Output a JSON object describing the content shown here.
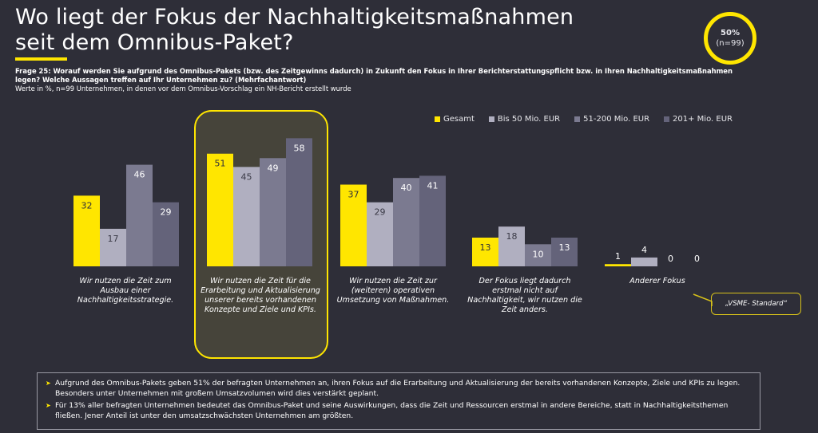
{
  "header": {
    "title_line1": "Wo liegt der Fokus der Nachhaltigkeitsmaßnahmen",
    "title_line2": "seit dem Omnibus-Paket?",
    "accent_color": "#ffe600"
  },
  "badge": {
    "percent": "50%",
    "sample": "(n=99)"
  },
  "question": {
    "text_bold": "Frage 25: Worauf werden Sie aufgrund des Omnibus-Pakets (bzw. des Zeitgewinns dadurch) in Zukunft den Fokus in Ihrer Berichterstattungspflicht bzw. in Ihren Nachhaltigkeitsmaßnahmen legen? Welche Aussagen treffen auf Ihr Unternehmen zu? (Mehrfachantwort)",
    "note": "Werte in %, n=99 Unternehmen, in denen vor dem Omnibus-Vorschlag ein NH-Bericht erstellt wurde"
  },
  "chart_data": {
    "type": "bar",
    "title": "Wo liegt der Fokus der Nachhaltigkeitsmaßnahmen seit dem Omnibus-Paket?",
    "xlabel": "",
    "ylabel": "Werte in %",
    "ylim": [
      0,
      60
    ],
    "grid": false,
    "legend_position": "top-right",
    "categories": [
      "Wir nutzen die Zeit zum Ausbau einer Nachhaltigkeitsstrategie.",
      "Wir nutzen die Zeit für die Erarbeitung und Aktualisierung unserer bereits vorhandenen Konzepte und Ziele und KPIs.",
      "Wir nutzen die Zeit zur (weiteren) operativen Umsetzung von Maßnahmen.",
      "Der Fokus liegt dadurch erstmal nicht auf Nachhaltigkeit, wir nutzen die Zeit anders.",
      "Anderer Fokus"
    ],
    "series": [
      {
        "name": "Gesamt",
        "color": "#ffe600",
        "label_color": "#2e2e38",
        "values": [
          32,
          51,
          37,
          13,
          1
        ]
      },
      {
        "name": "Bis 50 Mio. EUR",
        "color": "#b0afc0",
        "label_color": "#3a3a46",
        "values": [
          17,
          45,
          29,
          18,
          4
        ]
      },
      {
        "name": "51-200 Mio. EUR",
        "color": "#7b7a90",
        "label_color": "#ffffff",
        "values": [
          46,
          49,
          40,
          10,
          0
        ]
      },
      {
        "name": "201+ Mio. EUR",
        "color": "#64637a",
        "label_color": "#ffffff",
        "values": [
          29,
          58,
          41,
          13,
          0
        ]
      }
    ],
    "highlighted_category_index": 1,
    "annotation": "„VSME- Standard“"
  },
  "category_labels": [
    "Wir nutzen die Zeit zum Ausbau einer Nachhaltigkeitsstrategie.",
    "Wir nutzen die Zeit für die Erarbeitung und Aktualisierung unserer bereits vorhandenen Konzepte und Ziele und KPIs.",
    "Wir nutzen die Zeit zur (weiteren) operativen Umsetzung von Maßnahmen.",
    "Der Fokus liegt dadurch erstmal nicht auf Nachhaltigkeit, wir nutzen die Zeit anders.",
    "Anderer Fokus"
  ],
  "legend": [
    {
      "label": "Gesamt",
      "color": "#ffe600"
    },
    {
      "label": "Bis 50 Mio. EUR",
      "color": "#b0afc0"
    },
    {
      "label": "51-200 Mio. EUR",
      "color": "#7b7a90"
    },
    {
      "label": "201+ Mio. EUR",
      "color": "#64637a"
    }
  ],
  "callout": {
    "text": "„VSME- Standard“"
  },
  "summary": {
    "bullet_icon": "triangle-right-icon",
    "items": [
      "Aufgrund des Omnibus-Pakets geben 51% der befragten Unternehmen an, ihren Fokus auf die Erarbeitung und Aktualisierung der bereits vorhandenen Konzepte, Ziele und KPIs zu legen. Besonders unter Unternehmen mit großem Umsatzvolumen wird dies verstärkt geplant.",
      "Für 13% aller befragten Unternehmen bedeutet das Omnibus-Paket und seine Auswirkungen, dass die Zeit und Ressourcen erstmal in andere Bereiche, statt in Nachhaltigkeitsthemen fließen. Jener Anteil ist unter den umsatzschwächsten Unternehmen am größten."
    ]
  }
}
